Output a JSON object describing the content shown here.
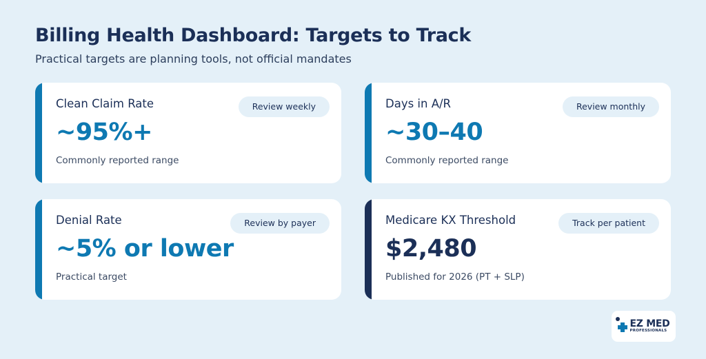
{
  "header": {
    "title": "Billing Health Dashboard: Targets to Track",
    "subtitle": "Practical targets are planning tools, not official mandates"
  },
  "cards": [
    {
      "label": "Clean Claim Rate",
      "pill": "Review weekly",
      "value": "~95%+",
      "note": "Commonly reported range",
      "accent": "#0e79b2"
    },
    {
      "label": "Days in A/R",
      "pill": "Review monthly",
      "value": "~30–40",
      "note": "Commonly reported range",
      "accent": "#0e79b2"
    },
    {
      "label": "Denial Rate",
      "pill": "Review by payer",
      "value": "~5% or lower",
      "note": "Practical target",
      "accent": "#0e79b2"
    },
    {
      "label": "Medicare KX Threshold",
      "pill": "Track per patient",
      "value": "$2,480",
      "note": "Published for 2026 (PT + SLP)",
      "accent": "#1b2f57"
    }
  ],
  "logo": {
    "main": "EZ MED",
    "sub": "PROFESSIONALS",
    "icon": "medical-cross-icon"
  },
  "colors": {
    "background": "#e4f0f8",
    "primary_blue": "#0e79b2",
    "navy": "#1b2f57"
  }
}
